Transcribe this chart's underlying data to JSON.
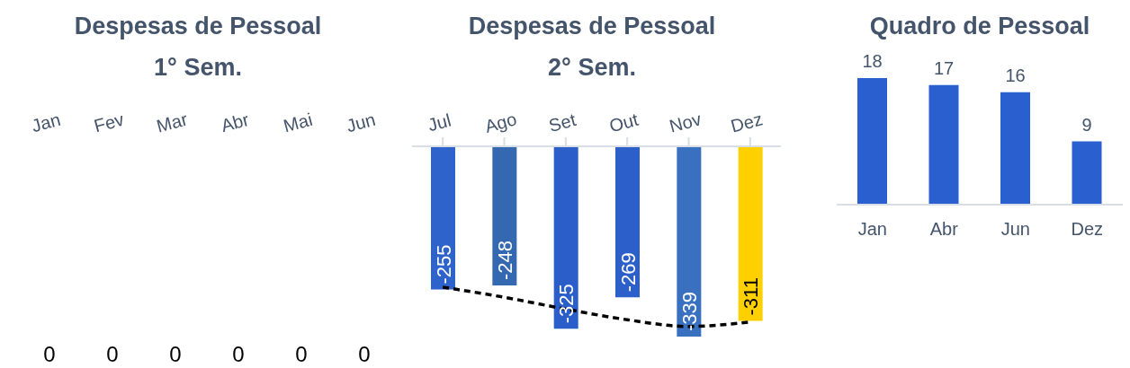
{
  "chart_data": [
    {
      "type": "other",
      "title": "Despesas de Pessoal",
      "subtitle": "1° Sem.",
      "categories": [
        "Jan",
        "Fev",
        "Mar",
        "Abr",
        "Mai",
        "Jun"
      ],
      "values": [
        0,
        0,
        0,
        0,
        0,
        0
      ],
      "color": "#2e63cc",
      "data_labels": true
    },
    {
      "type": "bar",
      "title": "Despesas de Pessoal",
      "subtitle": "2° Sem.",
      "categories": [
        "Jul",
        "Ago",
        "Set",
        "Out",
        "Nov",
        "Dez"
      ],
      "series": [
        {
          "data_labels": true,
          "values": [
            -255,
            -248,
            -325,
            -269,
            -339,
            -311
          ],
          "colors": [
            "#2e63cc",
            "#3468b0",
            "#2b5ec8",
            "#2c5fc9",
            "#3a70c0",
            "#ffd000"
          ]
        },
        {
          "type": "line",
          "values": [
            -251,
            -269,
            -290,
            -309,
            -321,
            -313
          ],
          "color": "#000000",
          "line_style": "dashed",
          "marker": "none"
        }
      ]
    },
    {
      "type": "bar",
      "title": "Quadro de Pessoal",
      "categories": [
        "Jan",
        "Abr",
        "Jun",
        "Dez"
      ],
      "values": [
        18,
        17,
        16,
        9
      ],
      "color": "#2a5fcf",
      "data_labels": true
    }
  ]
}
